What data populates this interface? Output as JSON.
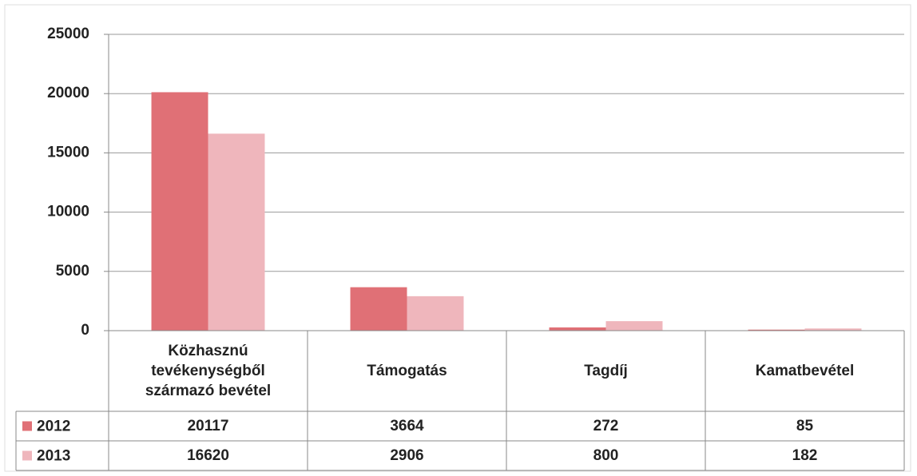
{
  "chart_data": {
    "type": "bar",
    "categories": [
      "Közhasznú tevékenységből származó bevétel",
      "Támogatás",
      "Tagdíj",
      "Kamatbevétel"
    ],
    "series": [
      {
        "name": "2012",
        "color": "#e07076",
        "values": [
          20117,
          3664,
          272,
          85
        ]
      },
      {
        "name": "2013",
        "color": "#efb6bc",
        "values": [
          16620,
          2906,
          800,
          182
        ]
      }
    ],
    "ylim": [
      0,
      25000
    ],
    "yticks": [
      0,
      5000,
      10000,
      15000,
      20000,
      25000
    ],
    "grid": true
  }
}
